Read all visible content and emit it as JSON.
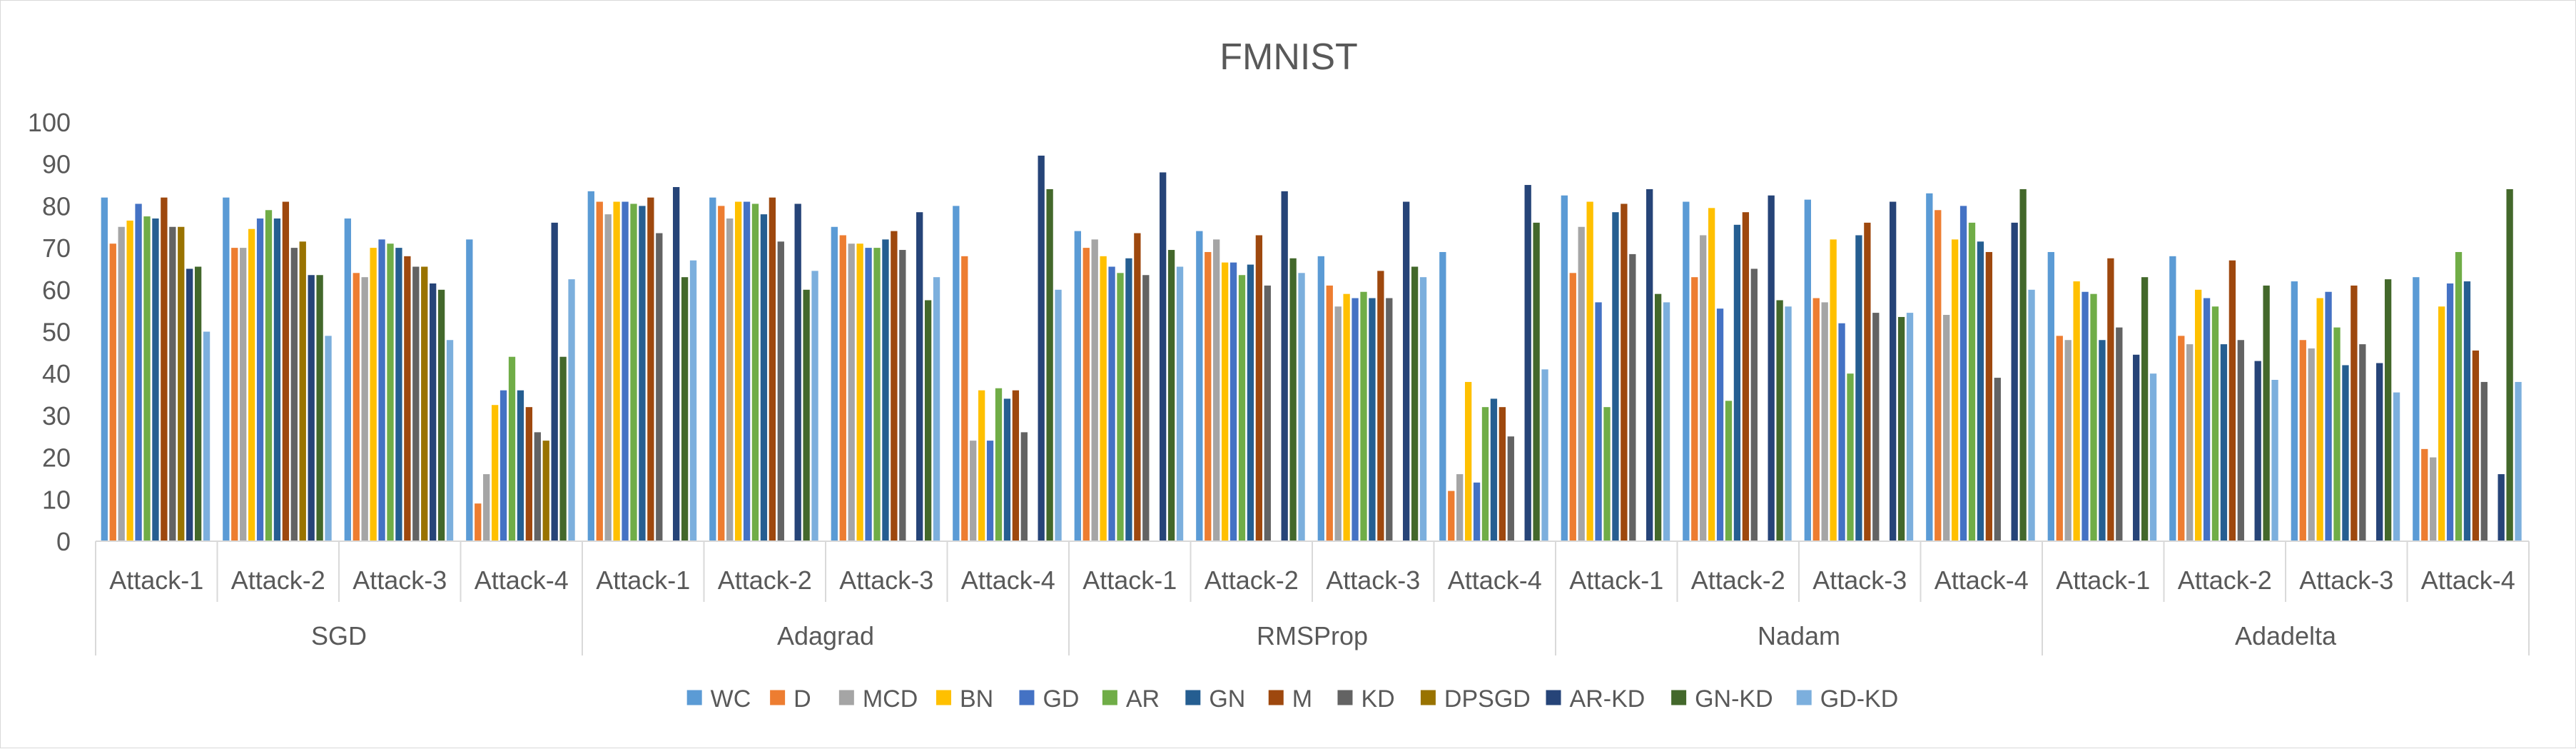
{
  "chart_data": {
    "type": "bar",
    "title": "FMNIST",
    "xlabel": "",
    "ylabel": "",
    "ylim": [
      0,
      100
    ],
    "yticks": [
      0,
      10,
      20,
      30,
      40,
      50,
      60,
      70,
      80,
      90,
      100
    ],
    "grid": false,
    "legend_position": "bottom",
    "groups": [
      "SGD",
      "Adagrad",
      "RMSProp",
      "Nadam",
      "Adadelta"
    ],
    "categories": [
      "Attack-1",
      "Attack-2",
      "Attack-3",
      "Attack-4"
    ],
    "series": [
      {
        "name": "WC",
        "color": "#5B9BD5",
        "values": [
          [
            82,
            82,
            77,
            72
          ],
          [
            83.5,
            82,
            75,
            80
          ],
          [
            74,
            74,
            68,
            69
          ],
          [
            82.5,
            81,
            81.5,
            83
          ],
          [
            69,
            68,
            62,
            63
          ]
        ]
      },
      {
        "name": "D",
        "color": "#ED7D31",
        "values": [
          [
            71,
            70,
            64,
            9
          ],
          [
            81,
            80,
            73,
            68
          ],
          [
            70,
            69,
            61,
            12
          ],
          [
            64,
            63,
            58,
            79
          ],
          [
            49,
            49,
            48,
            22
          ]
        ]
      },
      {
        "name": "MCD",
        "color": "#A5A5A5",
        "values": [
          [
            75,
            70,
            63,
            16
          ],
          [
            78,
            77,
            71,
            24
          ],
          [
            72,
            72,
            56,
            16
          ],
          [
            75,
            73,
            57,
            54
          ],
          [
            48,
            47,
            46,
            20
          ]
        ]
      },
      {
        "name": "BN",
        "color": "#FFC000",
        "values": [
          [
            76.5,
            74.5,
            70,
            32.5
          ],
          [
            81,
            81,
            71,
            36
          ],
          [
            68,
            66.5,
            59,
            38
          ],
          [
            81,
            79.5,
            72,
            72
          ],
          [
            62,
            60,
            58,
            56
          ]
        ]
      },
      {
        "name": "GD",
        "color": "#4472C4",
        "values": [
          [
            80.5,
            77,
            72,
            36
          ],
          [
            81,
            81,
            70,
            24
          ],
          [
            65.5,
            66.5,
            58,
            14
          ],
          [
            57,
            55.5,
            52,
            80
          ],
          [
            59.5,
            58,
            59.5,
            61.5
          ]
        ]
      },
      {
        "name": "AR",
        "color": "#70AD47",
        "values": [
          [
            77.5,
            79,
            71,
            44
          ],
          [
            80.5,
            80.5,
            70,
            36.5
          ],
          [
            64,
            63.5,
            59.5,
            32
          ],
          [
            32,
            33.5,
            40,
            76
          ],
          [
            59,
            56,
            51,
            69
          ]
        ]
      },
      {
        "name": "GN",
        "color": "#255E91",
        "values": [
          [
            77,
            77,
            70,
            36
          ],
          [
            80,
            78,
            72,
            34
          ],
          [
            67.5,
            66,
            58,
            34
          ],
          [
            78.5,
            75.5,
            73,
            71.5
          ],
          [
            48,
            47,
            42,
            62
          ]
        ]
      },
      {
        "name": "M",
        "color": "#9E480E",
        "values": [
          [
            82,
            81,
            68,
            32
          ],
          [
            82,
            82,
            74,
            36
          ],
          [
            73.5,
            73,
            64.5,
            32
          ],
          [
            80.5,
            78.5,
            76,
            69
          ],
          [
            67.5,
            67,
            61,
            45.5
          ]
        ]
      },
      {
        "name": "KD",
        "color": "#636363",
        "values": [
          [
            75,
            70,
            65.5,
            26
          ],
          [
            73.5,
            71.5,
            69.5,
            26
          ],
          [
            63.5,
            61,
            58,
            25
          ],
          [
            68.5,
            65,
            54.5,
            39
          ],
          [
            51,
            48,
            47,
            38
          ]
        ]
      },
      {
        "name": "DPSGD",
        "color": "#997300",
        "values": [
          [
            75,
            71.5,
            65.5,
            24
          ],
          [
            null,
            null,
            null,
            null
          ],
          [
            null,
            null,
            null,
            null
          ],
          [
            null,
            null,
            null,
            null
          ],
          [
            null,
            null,
            null,
            null
          ]
        ]
      },
      {
        "name": "AR-KD",
        "color": "#264478",
        "values": [
          [
            65,
            63.5,
            61.5,
            76
          ],
          [
            84.5,
            80.5,
            78.5,
            92
          ],
          [
            88,
            83.5,
            81,
            85
          ],
          [
            84,
            82.5,
            81,
            76
          ],
          [
            44.5,
            43,
            42.5,
            16
          ]
        ]
      },
      {
        "name": "GN-KD",
        "color": "#43682B",
        "values": [
          [
            65.5,
            63.5,
            60,
            44
          ],
          [
            63,
            60,
            57.5,
            84
          ],
          [
            69.5,
            67.5,
            65.5,
            76
          ],
          [
            59,
            57.5,
            53.5,
            84
          ],
          [
            63,
            61,
            62.5,
            84
          ]
        ]
      },
      {
        "name": "GD-KD",
        "color": "#7CAFDD",
        "values": [
          [
            50,
            49,
            48,
            62.5
          ],
          [
            67,
            64.5,
            63,
            60
          ],
          [
            65.5,
            64,
            63,
            41
          ],
          [
            57,
            56,
            54.5,
            60
          ],
          [
            40,
            38.5,
            35.5,
            38
          ]
        ]
      }
    ]
  }
}
